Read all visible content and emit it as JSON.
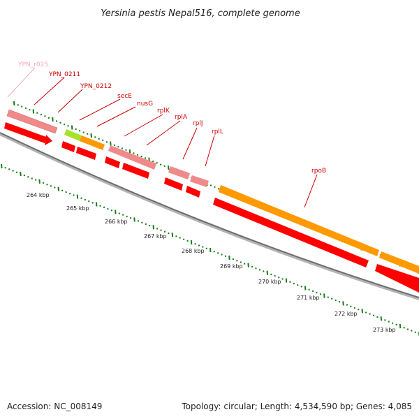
{
  "header": {
    "title": "Yersinia pestis Nepal516, complete genome"
  },
  "footer": {
    "accession": "Accession: NC_008149",
    "topology": "Topology: circular; Length: 4,534,590 bp; Genes: 4,085"
  },
  "colors": {
    "cds_red": "#ff0000",
    "gene_pink": "#f08a8a",
    "rna_pink": "#f4a6c8",
    "rrna_green": "#a6e22e",
    "orange": "#ff9900",
    "backbone": "#808080",
    "tick_green": "#1a7a1a",
    "label_red": "#cc0000"
  },
  "genes": [
    {
      "label": "YPN_r025",
      "color": "#f4a6c8"
    },
    {
      "label": "YPN_0211",
      "color": "#cc0000"
    },
    {
      "label": "YPN_0212",
      "color": "#cc0000"
    },
    {
      "label": "secE",
      "color": "#cc0000"
    },
    {
      "label": "nusG",
      "color": "#cc0000"
    },
    {
      "label": "rplK",
      "color": "#cc0000"
    },
    {
      "label": "rplA",
      "color": "#cc0000"
    },
    {
      "label": "rplJ",
      "color": "#cc0000"
    },
    {
      "label": "rplL",
      "color": "#cc0000"
    },
    {
      "label": "rpoB",
      "color": "#cc0000"
    }
  ],
  "scale_labels": [
    "264 kbp",
    "265 kbp",
    "266 kbp",
    "267 kbp",
    "268 kbp",
    "269 kbp",
    "270 kbp",
    "271 kbp",
    "272 kbp",
    "273 kbp"
  ]
}
